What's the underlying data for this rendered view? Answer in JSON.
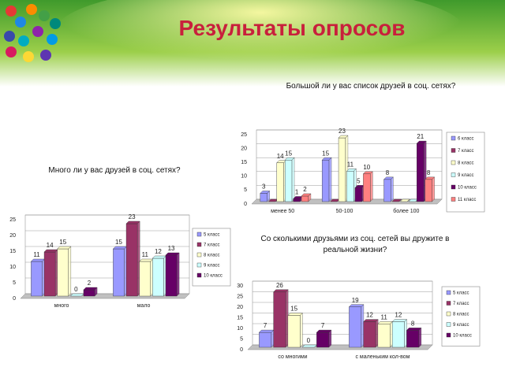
{
  "title": "Результаты опросов",
  "chart_data": [
    {
      "type": "bar",
      "title": "Большой ли у вас список друзей в соц. сетях?",
      "categories": [
        "менее 50",
        "50-100",
        "более 100"
      ],
      "series": [
        {
          "name": "6 класс",
          "color": "#9999ff",
          "values": [
            3,
            15,
            8
          ]
        },
        {
          "name": "7 класс",
          "color": "#993366",
          "values": [
            0,
            0,
            0
          ]
        },
        {
          "name": "8 класс",
          "color": "#ffffcc",
          "values": [
            14,
            23,
            0
          ]
        },
        {
          "name": "9 класс",
          "color": "#ccffff",
          "values": [
            15,
            11,
            0
          ]
        },
        {
          "name": "10 класс",
          "color": "#660066",
          "values": [
            1,
            5,
            21
          ]
        },
        {
          "name": "11 класс",
          "color": "#ff8080",
          "values": [
            2,
            10,
            8
          ]
        }
      ],
      "ylim": [
        0,
        25
      ],
      "yticks": [
        0,
        5,
        10,
        15,
        20,
        25
      ],
      "grid": true,
      "zero_labels": false
    },
    {
      "type": "bar",
      "title": "Много ли у вас друзей в соц. сетях?",
      "categories": [
        "много",
        "мало"
      ],
      "series": [
        {
          "name": "5 класс",
          "color": "#9999ff",
          "values": [
            11,
            15
          ]
        },
        {
          "name": "7 класс",
          "color": "#993366",
          "values": [
            14,
            23
          ]
        },
        {
          "name": "8 класс",
          "color": "#ffffcc",
          "values": [
            15,
            11
          ]
        },
        {
          "name": "9 класс",
          "color": "#ccffff",
          "values": [
            0,
            12
          ]
        },
        {
          "name": "10 класс",
          "color": "#660066",
          "values": [
            2,
            13
          ]
        }
      ],
      "ylim": [
        0,
        25
      ],
      "yticks": [
        0,
        5,
        10,
        15,
        20,
        25
      ],
      "grid": true,
      "zero_labels": true
    },
    {
      "type": "bar",
      "title": "Со сколькими друзьями из соц. сетей вы дружите в реальной жизни?",
      "categories": [
        "со многими",
        "с маленьким кол-вом"
      ],
      "series": [
        {
          "name": "5 класс",
          "color": "#9999ff",
          "values": [
            7,
            19
          ]
        },
        {
          "name": "7 класс",
          "color": "#993366",
          "values": [
            26,
            12
          ]
        },
        {
          "name": "8 класс",
          "color": "#ffffcc",
          "values": [
            15,
            11
          ]
        },
        {
          "name": "9 класс",
          "color": "#ccffff",
          "values": [
            0,
            12
          ]
        },
        {
          "name": "10 класс",
          "color": "#660066",
          "values": [
            7,
            8
          ]
        }
      ],
      "ylim": [
        0,
        30
      ],
      "yticks": [
        0,
        5,
        10,
        15,
        20,
        25,
        30
      ],
      "grid": true,
      "zero_labels": true
    }
  ]
}
